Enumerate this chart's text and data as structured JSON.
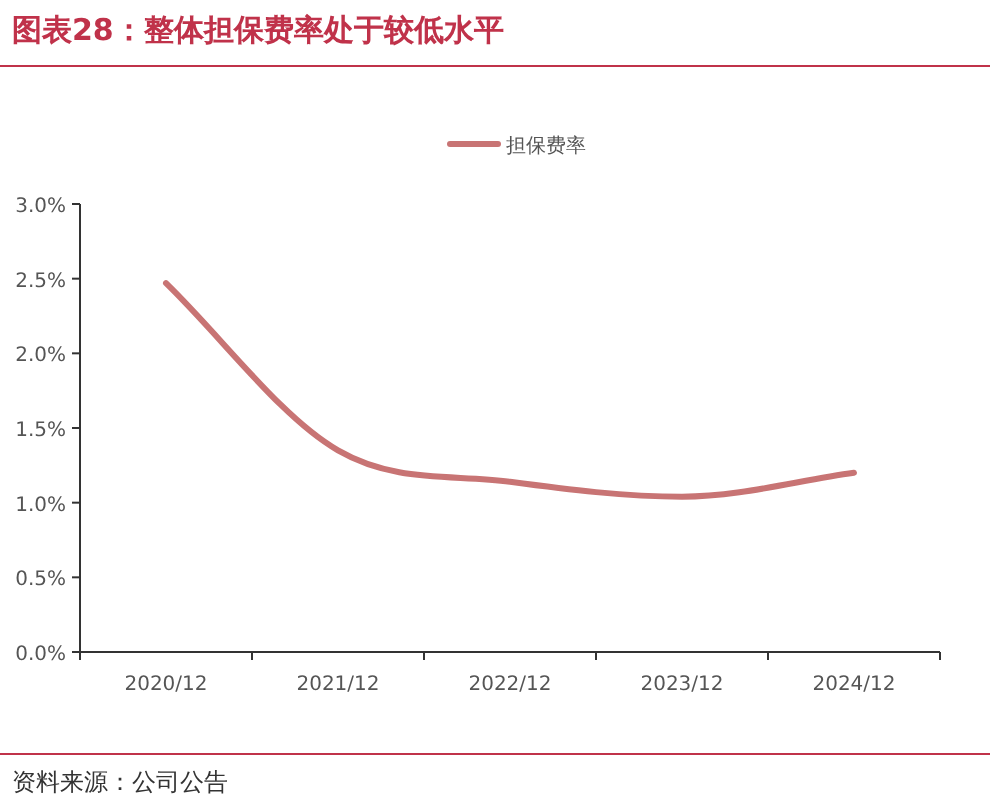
{
  "chart_data": {
    "type": "line",
    "title": "图表28：整体担保费率处于较低水平",
    "categories": [
      "2020/12",
      "2021/12",
      "2022/12",
      "2023/12",
      "2024/12"
    ],
    "series": [
      {
        "name": "担保费率",
        "color": "#c87474",
        "values": [
          2.47,
          1.35,
          1.14,
          1.04,
          1.2
        ]
      }
    ],
    "ylim": [
      0,
      3
    ],
    "yticks": [
      {
        "value": 0,
        "label": "0.0%"
      },
      {
        "value": 0.5,
        "label": "0.5%"
      },
      {
        "value": 1,
        "label": "1.0%"
      },
      {
        "value": 1.5,
        "label": "1.5%"
      },
      {
        "value": 2,
        "label": "2.0%"
      },
      {
        "value": 2.5,
        "label": "2.5%"
      },
      {
        "value": 3,
        "label": "3.0%"
      }
    ],
    "legend": "top",
    "grid": false,
    "marker": "none",
    "line_style": "solid",
    "annotations": [
      "资料来源：公司公告"
    ]
  }
}
